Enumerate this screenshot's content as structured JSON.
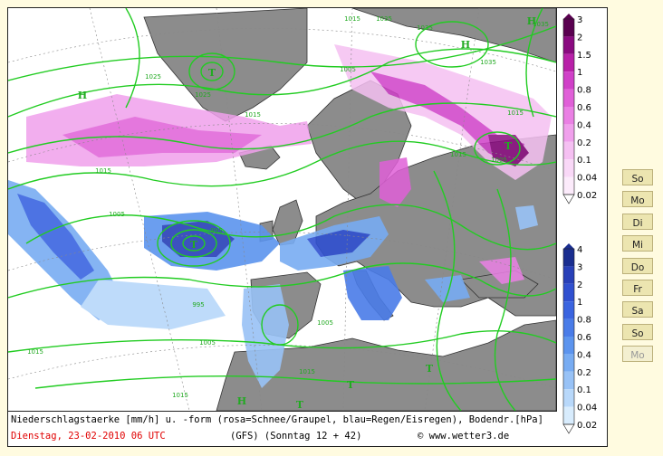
{
  "legend_snow": {
    "colors": [
      "#5a0050",
      "#8a0a80",
      "#b820a8",
      "#d040c8",
      "#e060d8",
      "#ea80e4",
      "#f0a0ec",
      "#f5c0f2",
      "#f9d8f7",
      "#fcebfb",
      "#ffffff"
    ],
    "labels": [
      "3",
      "2",
      "1.5",
      "1",
      "0.8",
      "0.6",
      "0.4",
      "0.2",
      "0.1",
      "0.04",
      "0.02"
    ]
  },
  "legend_rain": {
    "colors": [
      "#1a2e90",
      "#2840b8",
      "#3050d0",
      "#3a64e0",
      "#4a7ce8",
      "#5c94ee",
      "#78acf2",
      "#98c2f6",
      "#b8d8fa",
      "#d8ecfd",
      "#ffffff"
    ],
    "labels": [
      "4",
      "3",
      "2",
      "1",
      "0.8",
      "0.6",
      "0.4",
      "0.2",
      "0.1",
      "0.04",
      "0.02"
    ]
  },
  "isobar_labels": [
    "1035",
    "1035",
    "1025",
    "1015",
    "1005",
    "1015",
    "1005",
    "995",
    "1005",
    "1015",
    "1015",
    "995",
    "1005",
    "1015",
    "1015",
    "1015",
    "1005",
    "1035",
    "1035",
    "1025",
    "1015"
  ],
  "pressure_centers": [
    "H",
    "H",
    "H",
    "T",
    "T",
    "T",
    "H",
    "T",
    "T",
    "T"
  ],
  "caption": {
    "line1": "Niederschlagstaerke [mm/h] u. -form (rosa=Schnee/Graupel, blau=Regen/Eisregen), Bodendr.[hPa]",
    "date": "Dienstag, 23-02-2010  06 UTC",
    "source": "(GFS)  (Sonntag 12 + 42)",
    "site": "www.wetter3.de"
  },
  "days": [
    {
      "label": "So",
      "active": true
    },
    {
      "label": "Mo",
      "active": true
    },
    {
      "label": "Di",
      "active": true
    },
    {
      "label": "Mi",
      "active": true
    },
    {
      "label": "Do",
      "active": true
    },
    {
      "label": "Fr",
      "active": true
    },
    {
      "label": "Sa",
      "active": true
    },
    {
      "label": "So",
      "active": true
    },
    {
      "label": "Mo",
      "active": false
    }
  ]
}
